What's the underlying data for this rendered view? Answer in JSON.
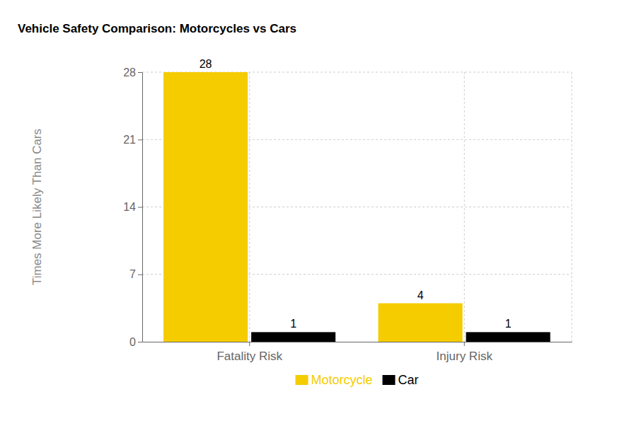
{
  "chart_data": {
    "type": "bar",
    "title": "Vehicle Safety Comparison: Motorcycles vs Cars",
    "y_label": "Times More Likely Than Cars",
    "categories": [
      "Fatality Risk",
      "Injury Risk"
    ],
    "series": [
      {
        "name": "Motorcycle",
        "color": "#f5cc00",
        "values": [
          28,
          4
        ]
      },
      {
        "name": "Car",
        "color": "#000000",
        "values": [
          1,
          1
        ]
      }
    ],
    "ylim": [
      0,
      28
    ],
    "yticks": [
      0,
      7,
      14,
      21,
      28
    ],
    "grid": true,
    "legend": "bottom",
    "data_labels": true
  }
}
